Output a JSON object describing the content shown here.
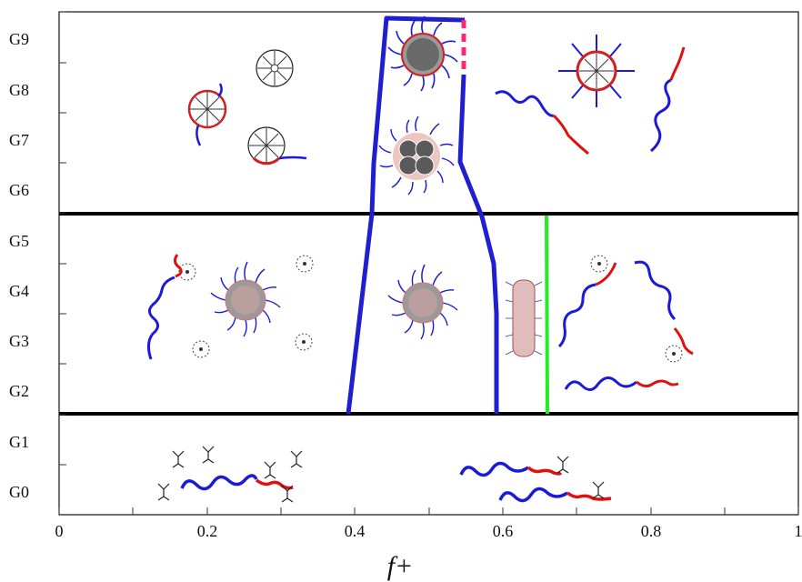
{
  "axis": {
    "x_label": "f+",
    "x_ticks": [
      "0",
      "0.2",
      "0.4",
      "0.6",
      "0.8",
      "1"
    ],
    "y_ticks": [
      "G0",
      "G1",
      "G2",
      "G3",
      "G4",
      "G5",
      "G6",
      "G7",
      "G8",
      "G9"
    ]
  },
  "colors": {
    "phase_boundary": "#1f1fd0",
    "green_boundary": "#22ee22",
    "dashed_boundary": "#ff2a6d",
    "frame": "#000000",
    "chain_blue": "#1a1ad8",
    "chain_red": "#e01010"
  },
  "icons": [
    "micelle-icon",
    "dendrimer-icon",
    "polymer-chain-icon",
    "small-molecule-icon"
  ]
}
